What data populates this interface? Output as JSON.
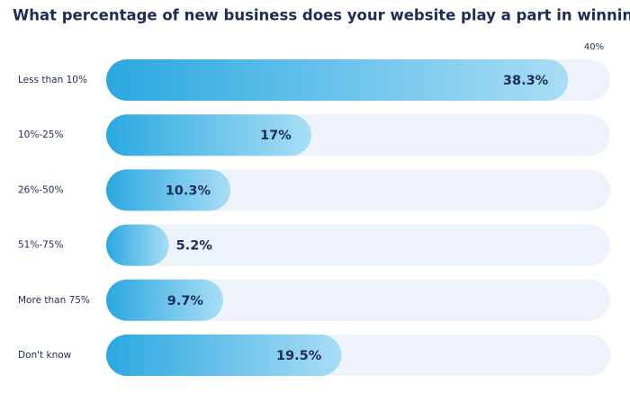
{
  "chart_data": {
    "type": "hbar",
    "title": "What percentage of new business does your website play a part in winning?",
    "categories": [
      "Less than 10%",
      "10%-25%",
      "26%-50%",
      "51%-75%",
      "More than 75%",
      "Don't know"
    ],
    "values": [
      38.3,
      17,
      10.3,
      5.2,
      9.7,
      19.5
    ],
    "value_labels": [
      "38.3%",
      "17%",
      "10.3%",
      "5.2%",
      "9.7%",
      "19.5%"
    ],
    "xlim": [
      0,
      40
    ],
    "xticks": [
      {
        "value": 40,
        "label": "40%"
      }
    ],
    "gradient": [
      "#2aa8e0",
      "#a9ddf5"
    ],
    "track_color": "#edf2fb"
  }
}
